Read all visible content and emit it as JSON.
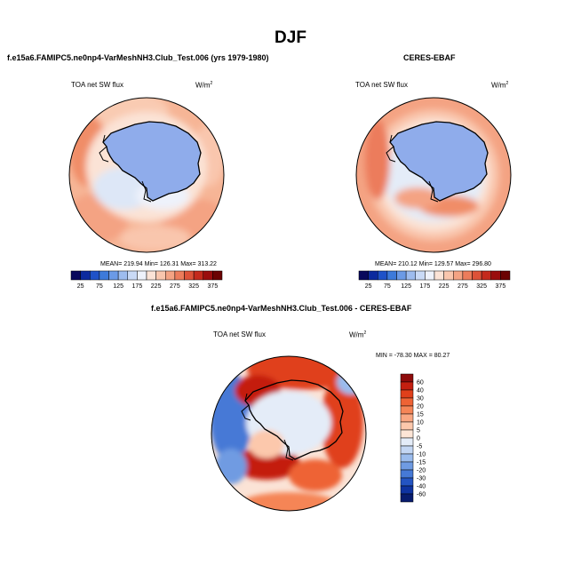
{
  "main_title": "DJF",
  "panels": {
    "model": {
      "title": "f.e15a6.FAMIPC5.ne0np4-VarMeshNH3.Club_Test.006 (yrs 1979-1980)",
      "var_label": "TOA net SW flux",
      "units": "W/m",
      "units_sup": "2",
      "stats": "MEAN= 219.94  Min= 126.31  Max= 313.22"
    },
    "obs": {
      "title": "CERES-EBAF",
      "var_label": "TOA net SW flux",
      "units": "W/m",
      "units_sup": "2",
      "stats": "MEAN= 210.12  Min= 129.57  Max= 296.80"
    },
    "diff": {
      "title": "f.e15a6.FAMIPC5.ne0np4-VarMeshNH3.Club_Test.006 - CERES-EBAF",
      "var_label": "TOA net SW flux",
      "units": "W/m",
      "units_sup": "2",
      "minmax": "MIN = -78.30 MAX =  80.27"
    }
  },
  "chart_data": [
    {
      "type": "heatmap",
      "projection": "south-polar stereographic",
      "title": "f.e15a6.FAMIPC5.ne0np4-VarMeshNH3.Club_Test.006 (yrs 1979-1980)",
      "variable": "TOA net SW flux",
      "units": "W/m2",
      "mean": 219.94,
      "min": 126.31,
      "max": 313.22,
      "colorbar": {
        "orientation": "horizontal",
        "levels": [
          25,
          50,
          75,
          100,
          125,
          150,
          175,
          200,
          225,
          250,
          275,
          300,
          325,
          350,
          375
        ],
        "tick_labels": [
          "25",
          "75",
          "125",
          "175",
          "225",
          "275",
          "325",
          "375"
        ],
        "colors": [
          "#08085c",
          "#0c2a9e",
          "#1f52c8",
          "#3d7ada",
          "#6b9ae6",
          "#9dbcef",
          "#c9daf6",
          "#eef2fb",
          "#fbe3d6",
          "#f9c6ad",
          "#f4a383",
          "#ec7c5b",
          "#dd5238",
          "#c42a1c",
          "#9a0d0d",
          "#6b0303"
        ]
      }
    },
    {
      "type": "heatmap",
      "projection": "south-polar stereographic",
      "title": "CERES-EBAF",
      "variable": "TOA net SW flux",
      "units": "W/m2",
      "mean": 210.12,
      "min": 129.57,
      "max": 296.8,
      "colorbar": {
        "orientation": "horizontal",
        "levels": [
          25,
          50,
          75,
          100,
          125,
          150,
          175,
          200,
          225,
          250,
          275,
          300,
          325,
          350,
          375
        ],
        "tick_labels": [
          "25",
          "75",
          "125",
          "175",
          "225",
          "275",
          "325",
          "375"
        ],
        "colors": [
          "#08085c",
          "#0c2a9e",
          "#1f52c8",
          "#3d7ada",
          "#6b9ae6",
          "#9dbcef",
          "#c9daf6",
          "#eef2fb",
          "#fbe3d6",
          "#f9c6ad",
          "#f4a383",
          "#ec7c5b",
          "#dd5238",
          "#c42a1c",
          "#9a0d0d",
          "#6b0303"
        ]
      }
    },
    {
      "type": "heatmap",
      "projection": "south-polar stereographic",
      "title": "f.e15a6.FAMIPC5.ne0np4-VarMeshNH3.Club_Test.006 - CERES-EBAF",
      "variable": "TOA net SW flux",
      "units": "W/m2",
      "min": -78.3,
      "max": 80.27,
      "colorbar": {
        "orientation": "vertical",
        "levels": [
          60,
          40,
          30,
          20,
          15,
          10,
          5,
          0,
          -5,
          -10,
          -15,
          -20,
          -30,
          -40,
          -60
        ],
        "tick_labels": [
          "60",
          "40",
          "30",
          "20",
          "15",
          "10",
          "5",
          "0",
          "-5",
          "-10",
          "-15",
          "-20",
          "-30",
          "-40",
          "-60"
        ],
        "colors": [
          "#8e0b0b",
          "#c41f10",
          "#e0401b",
          "#ee6335",
          "#f58557",
          "#f9a782",
          "#fcc8ac",
          "#fde5d6",
          "#e4ecf8",
          "#c3d6f3",
          "#9bbced",
          "#6f9be2",
          "#4679d6",
          "#2454c2",
          "#0f33a0",
          "#081c6e"
        ]
      }
    }
  ]
}
